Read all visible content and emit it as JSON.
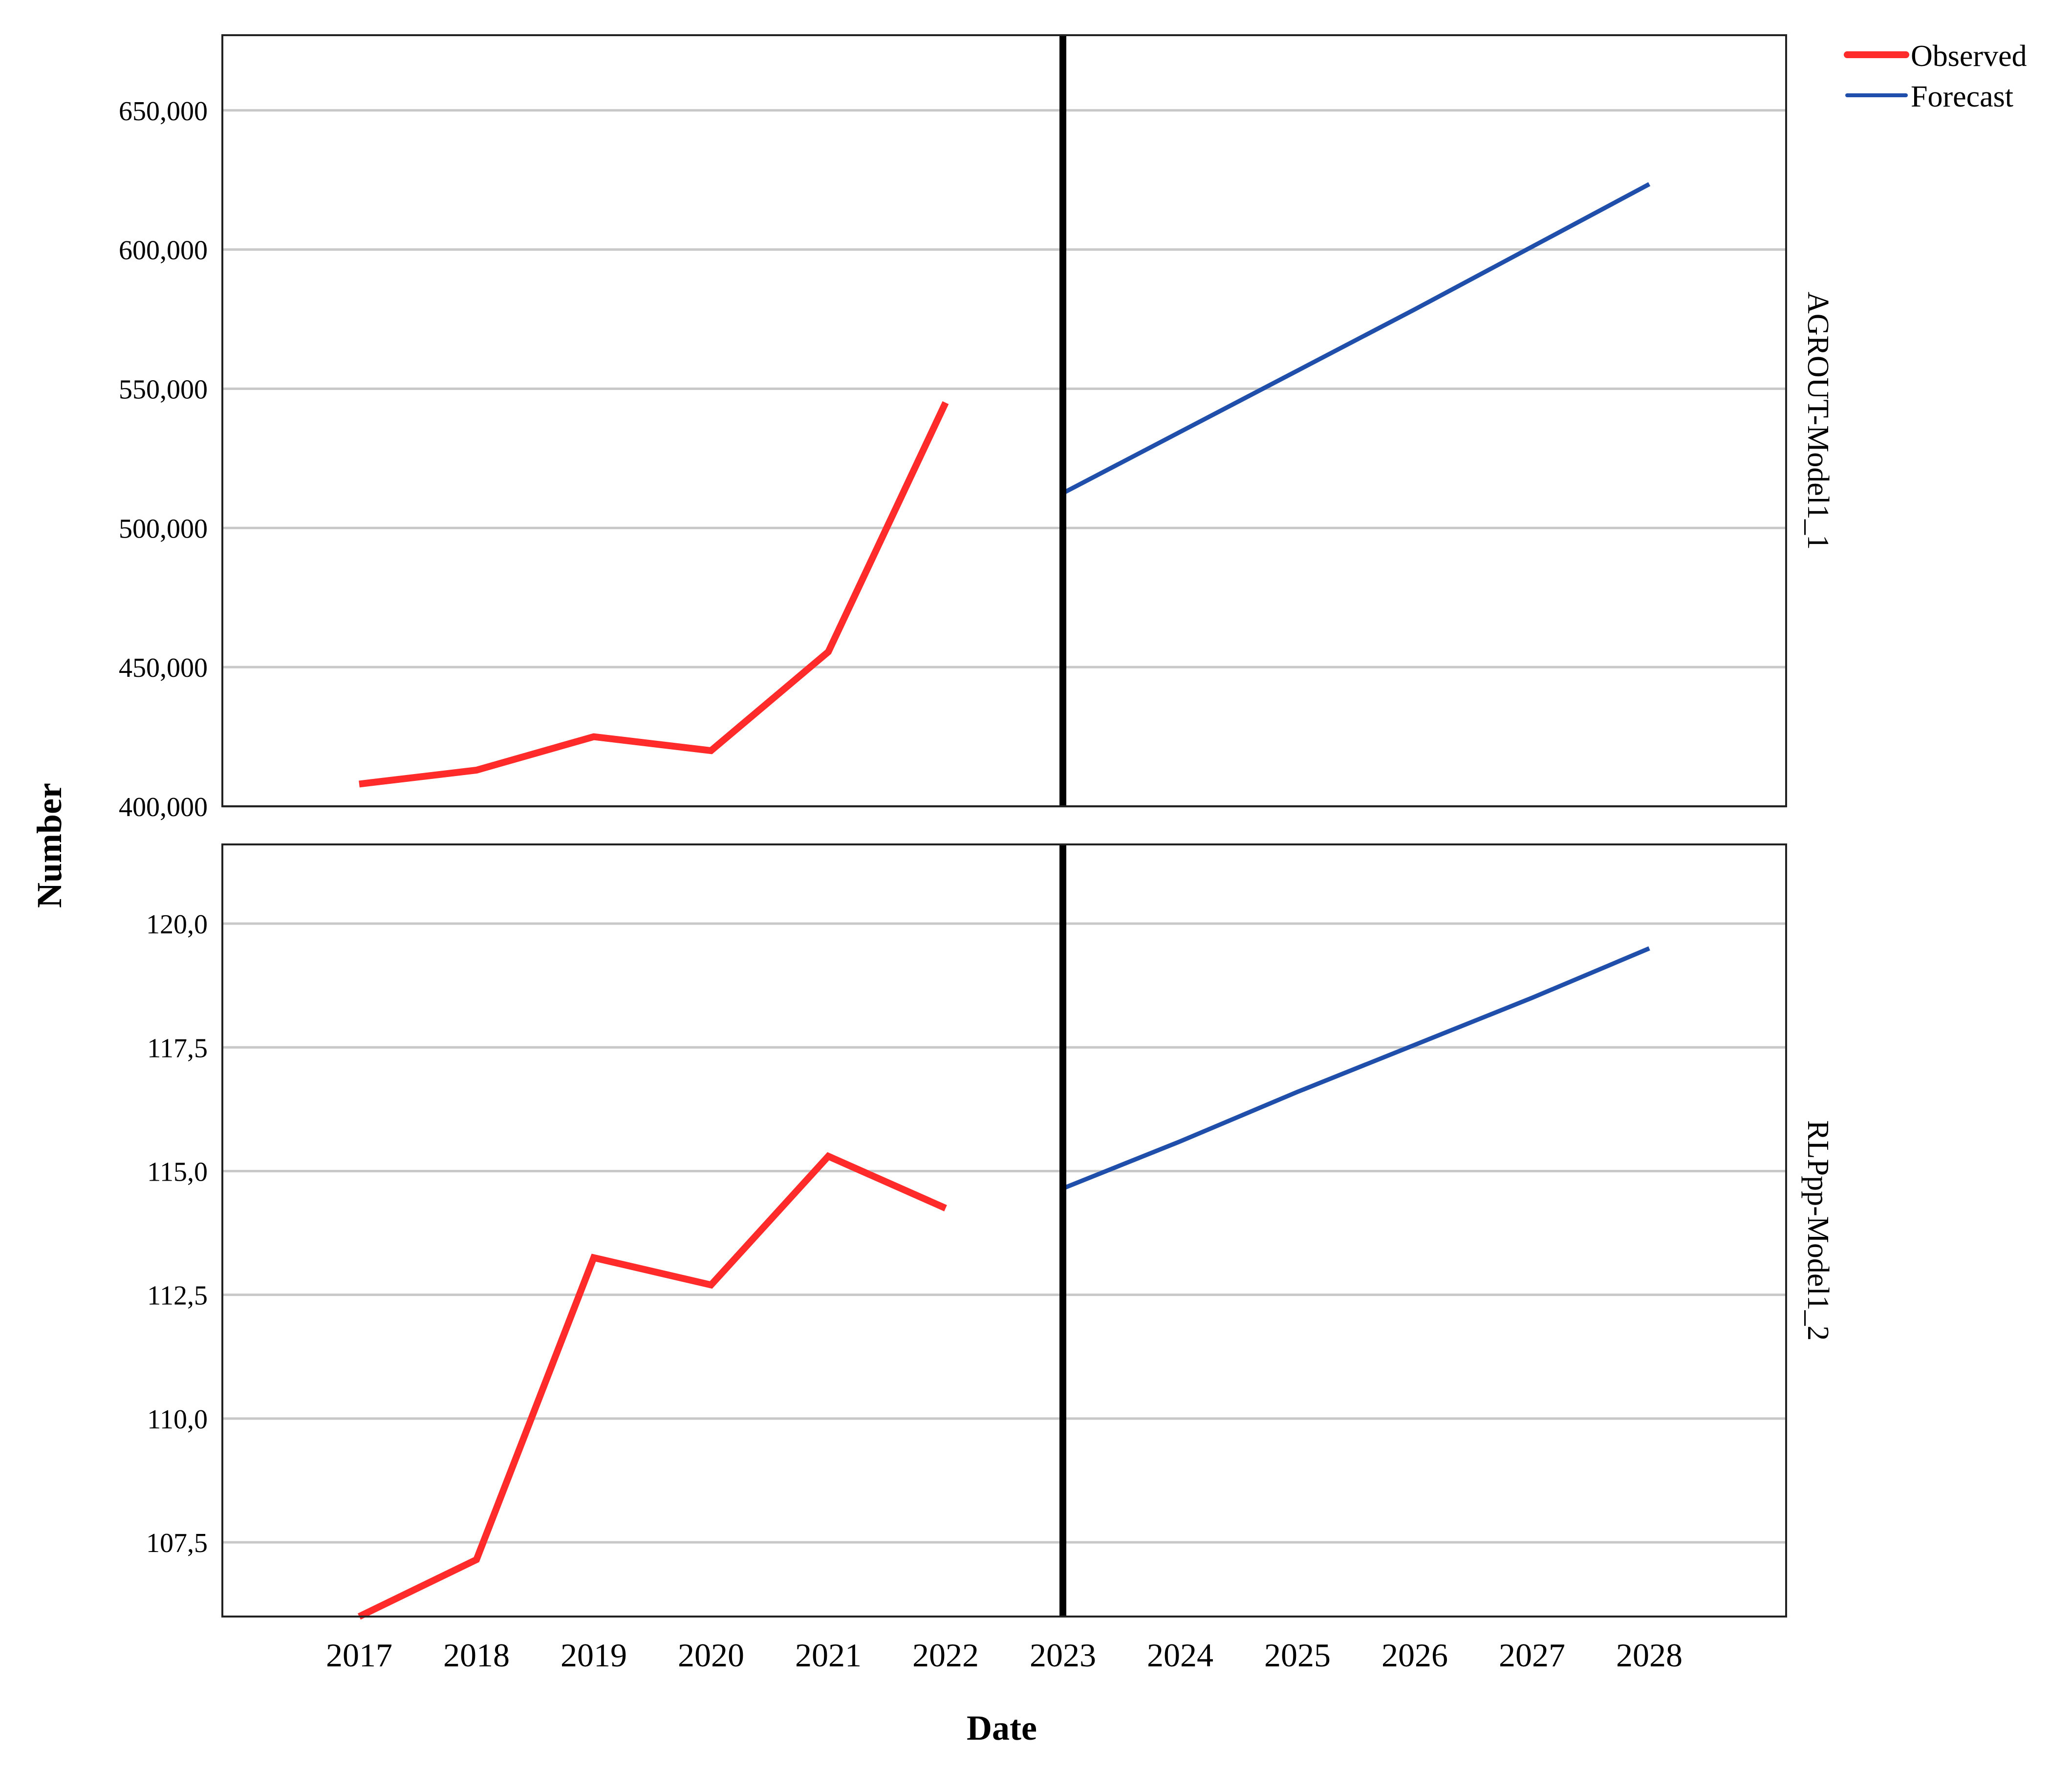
{
  "chart_data": {
    "type": "line",
    "xlabel": "Date",
    "ylabel": "Number",
    "x": [
      "2017",
      "2018",
      "2019",
      "2020",
      "2021",
      "2022",
      "2023",
      "2024",
      "2025",
      "2026",
      "2027",
      "2028"
    ],
    "forecast_origin": "2023",
    "legend": {
      "placement": "top-right",
      "entries": [
        {
          "name": "Observed",
          "color": "#ff2a2a"
        },
        {
          "name": "Forecast",
          "color": "#1f4faa"
        }
      ]
    },
    "grid": true,
    "panels": [
      {
        "label": "AGROUT-Model1_1",
        "ylim": [
          400000,
          677000
        ],
        "yticks": [
          400000,
          450000,
          500000,
          550000,
          600000,
          650000
        ],
        "ytick_labels": [
          "400,000",
          "450,000",
          "500,000",
          "550,000",
          "600,000",
          "650,000"
        ],
        "series": [
          {
            "name": "Observed",
            "x": [
              "2017",
              "2018",
              "2019",
              "2020",
              "2021",
              "2022"
            ],
            "values": [
              408000,
              413000,
              425000,
              420000,
              455500,
              545000
            ]
          },
          {
            "name": "Forecast",
            "x": [
              "2023",
              "2024",
              "2025",
              "2026",
              "2027",
              "2028"
            ],
            "values": [
              512500,
              534500,
              556500,
              578500,
              601000,
              623500
            ]
          }
        ]
      },
      {
        "label": "RLPpp-Model1_2",
        "ylim": [
          106.0,
          121.6
        ],
        "yticks": [
          107.5,
          110.0,
          112.5,
          115.0,
          117.5,
          120.0
        ],
        "ytick_labels": [
          "107,5",
          "110,0",
          "112,5",
          "115,0",
          "117,5",
          "120,0"
        ],
        "series": [
          {
            "name": "Observed",
            "x": [
              "2017",
              "2018",
              "2019",
              "2020",
              "2021",
              "2022"
            ],
            "values": [
              106.0,
              107.15,
              113.25,
              112.7,
              115.3,
              114.25
            ]
          },
          {
            "name": "Forecast",
            "x": [
              "2023",
              "2024",
              "2025",
              "2026",
              "2027",
              "2028"
            ],
            "values": [
              114.65,
              115.6,
              116.6,
              117.55,
              118.5,
              119.5
            ]
          }
        ]
      }
    ]
  }
}
